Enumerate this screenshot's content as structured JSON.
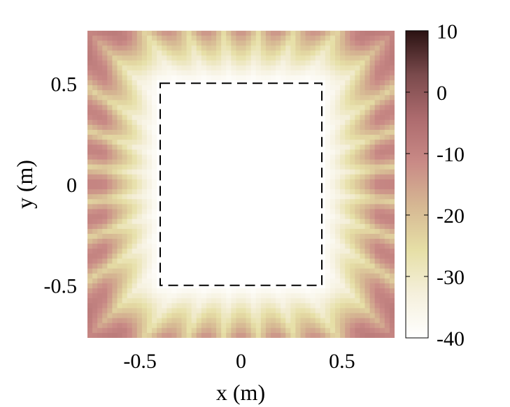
{
  "chart_data": {
    "type": "heatmap",
    "title": "",
    "xlabel": "x (m)",
    "ylabel": "y (m)",
    "xlim": [
      -0.76,
      0.76
    ],
    "ylim": [
      -0.76,
      0.76
    ],
    "xticks": [
      -0.5,
      0,
      0.5
    ],
    "xtick_labels": [
      "-0.5",
      "0",
      "0.5"
    ],
    "yticks": [
      -0.5,
      0,
      0.5
    ],
    "ytick_labels": [
      "-0.5",
      "0",
      "0.5"
    ],
    "colorbar": {
      "range": [
        -40,
        10
      ],
      "ticks": [
        10,
        0,
        -10,
        -20,
        -30,
        -40
      ],
      "tick_labels": [
        "10",
        "0",
        "-10",
        "-20",
        "-30",
        "-40"
      ],
      "colormap": [
        "#ffffff",
        "#f5f0dc",
        "#e6dfa6",
        "#d6b893",
        "#c98a86",
        "#ad6b6e",
        "#7a4a4c",
        "#2a1212"
      ]
    },
    "field": {
      "description_values": "field level in dB over the square domain",
      "interior_level": -40,
      "edge_level": -10,
      "corner_level": 5,
      "lobes_per_side": 7
    },
    "annotation": {
      "type": "dashed-rectangle",
      "x": [
        -0.4,
        0.4
      ],
      "y": [
        -0.5,
        0.5
      ],
      "color": "#000000"
    },
    "grid": false,
    "legend": "none"
  }
}
